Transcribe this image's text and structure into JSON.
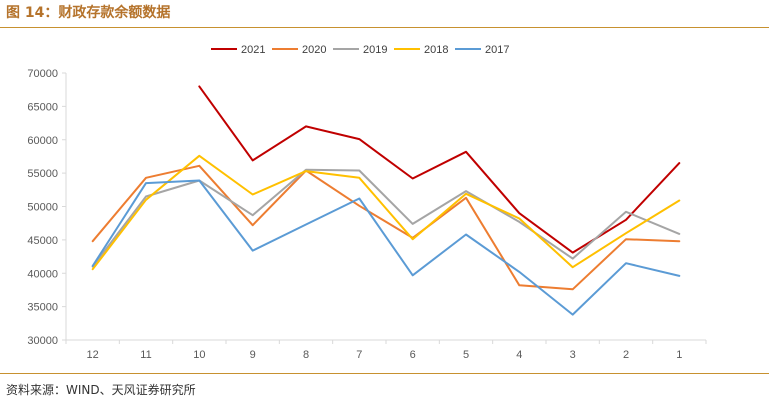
{
  "figure": {
    "title": "图 14：财政存款余额数据",
    "source": "资料来源：WIND、天风证券研究所"
  },
  "chart_data": {
    "type": "line",
    "categories": [
      "12",
      "11",
      "10",
      "9",
      "8",
      "7",
      "6",
      "5",
      "4",
      "3",
      "2",
      "1"
    ],
    "ylim": [
      30000,
      70000
    ],
    "yticks": [
      "70000",
      "65000",
      "60000",
      "55000",
      "50000",
      "45000",
      "40000",
      "35000",
      "30000"
    ],
    "grid": false,
    "legend_position": "top",
    "series": [
      {
        "name": "2021",
        "color": "#c00000",
        "values": [
          null,
          null,
          68000,
          56900,
          62000,
          60100,
          54200,
          58200,
          49000,
          43100,
          48000,
          56500
        ]
      },
      {
        "name": "2020",
        "color": "#ed7d31",
        "values": [
          44800,
          54300,
          56100,
          47200,
          55400,
          50100,
          45300,
          51300,
          38200,
          37600,
          45100,
          44800
        ]
      },
      {
        "name": "2019",
        "color": "#a5a5a5",
        "values": [
          41000,
          51500,
          53900,
          48700,
          55500,
          55400,
          47400,
          52300,
          47700,
          42200,
          49200,
          45900
        ]
      },
      {
        "name": "2018",
        "color": "#ffc000",
        "values": [
          40600,
          51000,
          57600,
          51800,
          55300,
          54300,
          45100,
          51900,
          48200,
          40900,
          46000,
          50900
        ]
      },
      {
        "name": "2017",
        "color": "#5b9bd5",
        "values": [
          41100,
          53500,
          53900,
          43400,
          47300,
          51200,
          39700,
          45800,
          40200,
          33800,
          41500,
          39600
        ]
      }
    ]
  }
}
